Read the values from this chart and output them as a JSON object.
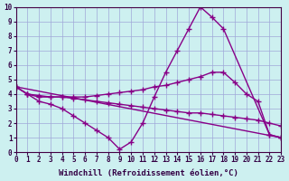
{
  "xlabel": "Windchill (Refroidissement éolien,°C)",
  "ylabel": "",
  "background_color": "#cdf0f0",
  "grid_color": "#a0a8d8",
  "line_color": "#880088",
  "xlim": [
    0,
    23
  ],
  "ylim": [
    0,
    10
  ],
  "xticks": [
    0,
    1,
    2,
    3,
    4,
    5,
    6,
    7,
    8,
    9,
    10,
    11,
    12,
    13,
    14,
    15,
    16,
    17,
    18,
    19,
    20,
    21,
    22,
    23
  ],
  "yticks": [
    0,
    1,
    2,
    3,
    4,
    5,
    6,
    7,
    8,
    9,
    10
  ],
  "line1_x": [
    0,
    1,
    2,
    3,
    4,
    5,
    6,
    7,
    8,
    9,
    10,
    11,
    12,
    13,
    14,
    15,
    16,
    17,
    18,
    22,
    23
  ],
  "line1_y": [
    4.5,
    4.0,
    3.5,
    3.3,
    3.0,
    2.5,
    2.0,
    1.5,
    1.0,
    0.2,
    0.7,
    2.0,
    3.8,
    5.5,
    7.0,
    8.5,
    10.0,
    9.3,
    8.5,
    1.2,
    1.0
  ],
  "line2_x": [
    0,
    1,
    2,
    3,
    4,
    5,
    6,
    7,
    8,
    9,
    10,
    11,
    12,
    13,
    14,
    15,
    16,
    17,
    18,
    19,
    20,
    21,
    22,
    23
  ],
  "line2_y": [
    4.5,
    4.0,
    3.8,
    3.8,
    3.8,
    3.8,
    3.8,
    3.9,
    4.0,
    4.1,
    4.2,
    4.3,
    4.5,
    4.6,
    4.8,
    5.0,
    5.2,
    5.5,
    5.5,
    4.8,
    4.0,
    3.5,
    1.2,
    1.0
  ],
  "line3_x": [
    0,
    1,
    2,
    3,
    4,
    5,
    6,
    7,
    8,
    9,
    10,
    11,
    12,
    13,
    14,
    15,
    16,
    17,
    18,
    19,
    20,
    21,
    22,
    23
  ],
  "line3_y": [
    4.5,
    4.0,
    3.9,
    3.8,
    3.8,
    3.7,
    3.6,
    3.5,
    3.4,
    3.3,
    3.2,
    3.1,
    3.0,
    2.9,
    2.8,
    2.7,
    2.7,
    2.6,
    2.5,
    2.4,
    2.3,
    2.2,
    2.0,
    1.8
  ],
  "line4_x": [
    0,
    23
  ],
  "line4_y": [
    4.5,
    1.0
  ],
  "marker": "+",
  "markersize": 4,
  "linewidth": 1.0,
  "tick_fontsize": 5.5,
  "xlabel_fontsize": 6.5
}
